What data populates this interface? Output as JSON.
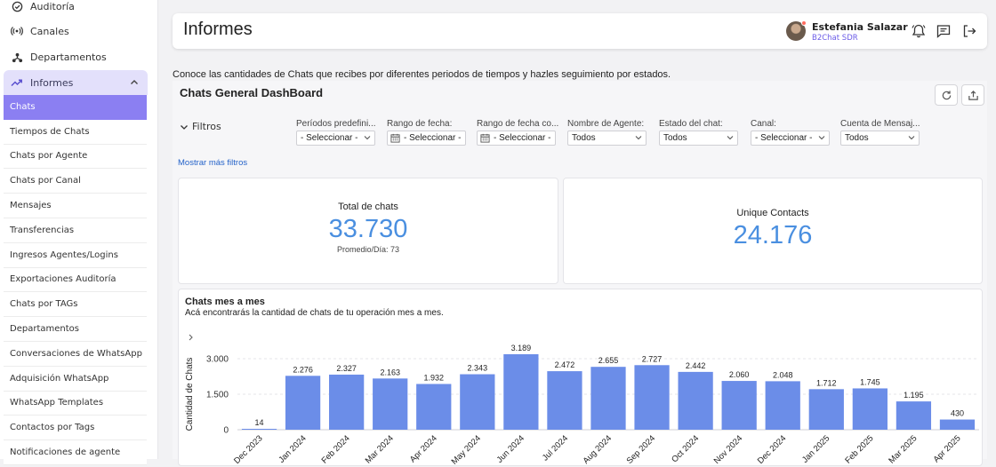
{
  "sidebar": {
    "top_items": [
      {
        "label": "Auditoría",
        "icon": "check-circle-icon"
      },
      {
        "label": "Canales",
        "icon": "broadcast-icon"
      },
      {
        "label": "Departamentos",
        "icon": "org-chart-icon"
      },
      {
        "label": "Informes",
        "icon": "trending-up-icon"
      }
    ],
    "sub_items": [
      "Chats",
      "Tiempos de Chats",
      "Chats por Agente",
      "Chats por Canal",
      "Mensajes",
      "Transferencias",
      "Ingresos Agentes/Logins",
      "Exportaciones Auditoría",
      "Chats por TAGs",
      "Departamentos",
      "Conversaciones de WhatsApp",
      "Adquisición WhatsApp",
      "WhatsApp Templates",
      "Contactos por Tags",
      "Notificaciones de agente"
    ],
    "active_sub": "Chats"
  },
  "header": {
    "title": "Informes",
    "user_name": "Estefania Salazar",
    "user_role": "B2Chat SDR"
  },
  "intro_text": "Conoce las cantidades de Chats que recibes por diferentes periodos de tiempos y hazles seguimiento por estados.",
  "dashboard": {
    "title": "Chats General DashBoard",
    "filters_label": "Filtros",
    "more_filters": "Mostrar más filtros",
    "filters": [
      {
        "label": "Períodos predefini...",
        "value": "- Seleccionar -",
        "type": "select"
      },
      {
        "label": "Rango de fecha:",
        "value": "- Seleccionar -",
        "type": "date"
      },
      {
        "label": "Rango de fecha co...",
        "value": "- Seleccionar -",
        "type": "date"
      },
      {
        "label": "Nombre de Agente:",
        "value": "Todos",
        "type": "select"
      },
      {
        "label": "Estado del chat:",
        "value": "Todos",
        "type": "select"
      },
      {
        "label": "Canal:",
        "value": "- Seleccionar -",
        "type": "select"
      },
      {
        "label": "Cuenta de Mensaj...",
        "value": "Todos",
        "type": "select"
      }
    ],
    "kpis": {
      "total_label": "Total de chats",
      "total_value": "33.730",
      "total_sub": "Promedio/Día: 73",
      "unique_label": "Unique Contacts",
      "unique_value": "24.176"
    }
  },
  "chart_data": {
    "type": "bar",
    "title": "Chats mes a mes",
    "subtitle": "Acá encontrarás la cantidad de chats de tu operación mes a mes.",
    "xlabel": "",
    "ylabel": "Cantidad de Chats",
    "ylim": [
      0,
      3400
    ],
    "yticks": [
      0,
      1500,
      3000
    ],
    "ytick_labels": [
      "0",
      "1.500",
      "3.000"
    ],
    "categories": [
      "Dec 2023",
      "Jan 2024",
      "Feb 2024",
      "Mar 2024",
      "Apr 2024",
      "May 2024",
      "Jun 2024",
      "Jul 2024",
      "Aug 2024",
      "Sep 2024",
      "Oct 2024",
      "Nov 2024",
      "Dec 2024",
      "Jan 2025",
      "Feb 2025",
      "Mar 2025",
      "Apr 2025"
    ],
    "values": [
      14,
      2276,
      2327,
      2163,
      1932,
      2343,
      3189,
      2472,
      2655,
      2727,
      2442,
      2060,
      2048,
      1712,
      1745,
      1195,
      430
    ],
    "value_labels": [
      "14",
      "2.276",
      "2.327",
      "2.163",
      "1.932",
      "2.343",
      "3.189",
      "2.472",
      "2.655",
      "2.727",
      "2.442",
      "2.060",
      "2.048",
      "1.712",
      "1.745",
      "1.195",
      "430"
    ],
    "bar_color": "#6b8de8",
    "grid": true
  },
  "colors": {
    "accent": "#8b7ff2",
    "accent_light": "#e3e0fb",
    "kpi_value": "#4a8fe0",
    "link": "#2563c9"
  }
}
